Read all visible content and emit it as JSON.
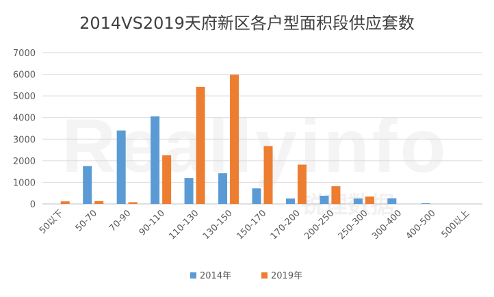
{
  "chart_data": {
    "type": "bar",
    "title": "2014VS2019天府新区各户型面积段供应套数",
    "categories": [
      "50以下",
      "50-70",
      "70-90",
      "90-110",
      "110-130",
      "130-150",
      "150-170",
      "170-200",
      "200-250",
      "250-300",
      "300-400",
      "400-500",
      "500以上"
    ],
    "series": [
      {
        "name": "2014年",
        "color": "#5B9BD5",
        "values": [
          0,
          1750,
          3400,
          4050,
          1200,
          1420,
          720,
          250,
          380,
          250,
          260,
          30,
          0
        ]
      },
      {
        "name": "2019年",
        "color": "#ED7D31",
        "values": [
          120,
          130,
          80,
          2250,
          5420,
          5980,
          2680,
          1820,
          820,
          340,
          0,
          0,
          0
        ]
      }
    ],
    "ylim": [
      0,
      7000
    ],
    "yticks": [
      0,
      1000,
      2000,
      3000,
      4000,
      5000,
      6000,
      7000
    ],
    "grid": true,
    "legend": "bottom",
    "watermark": "Reallyinfo 锐理数据"
  }
}
